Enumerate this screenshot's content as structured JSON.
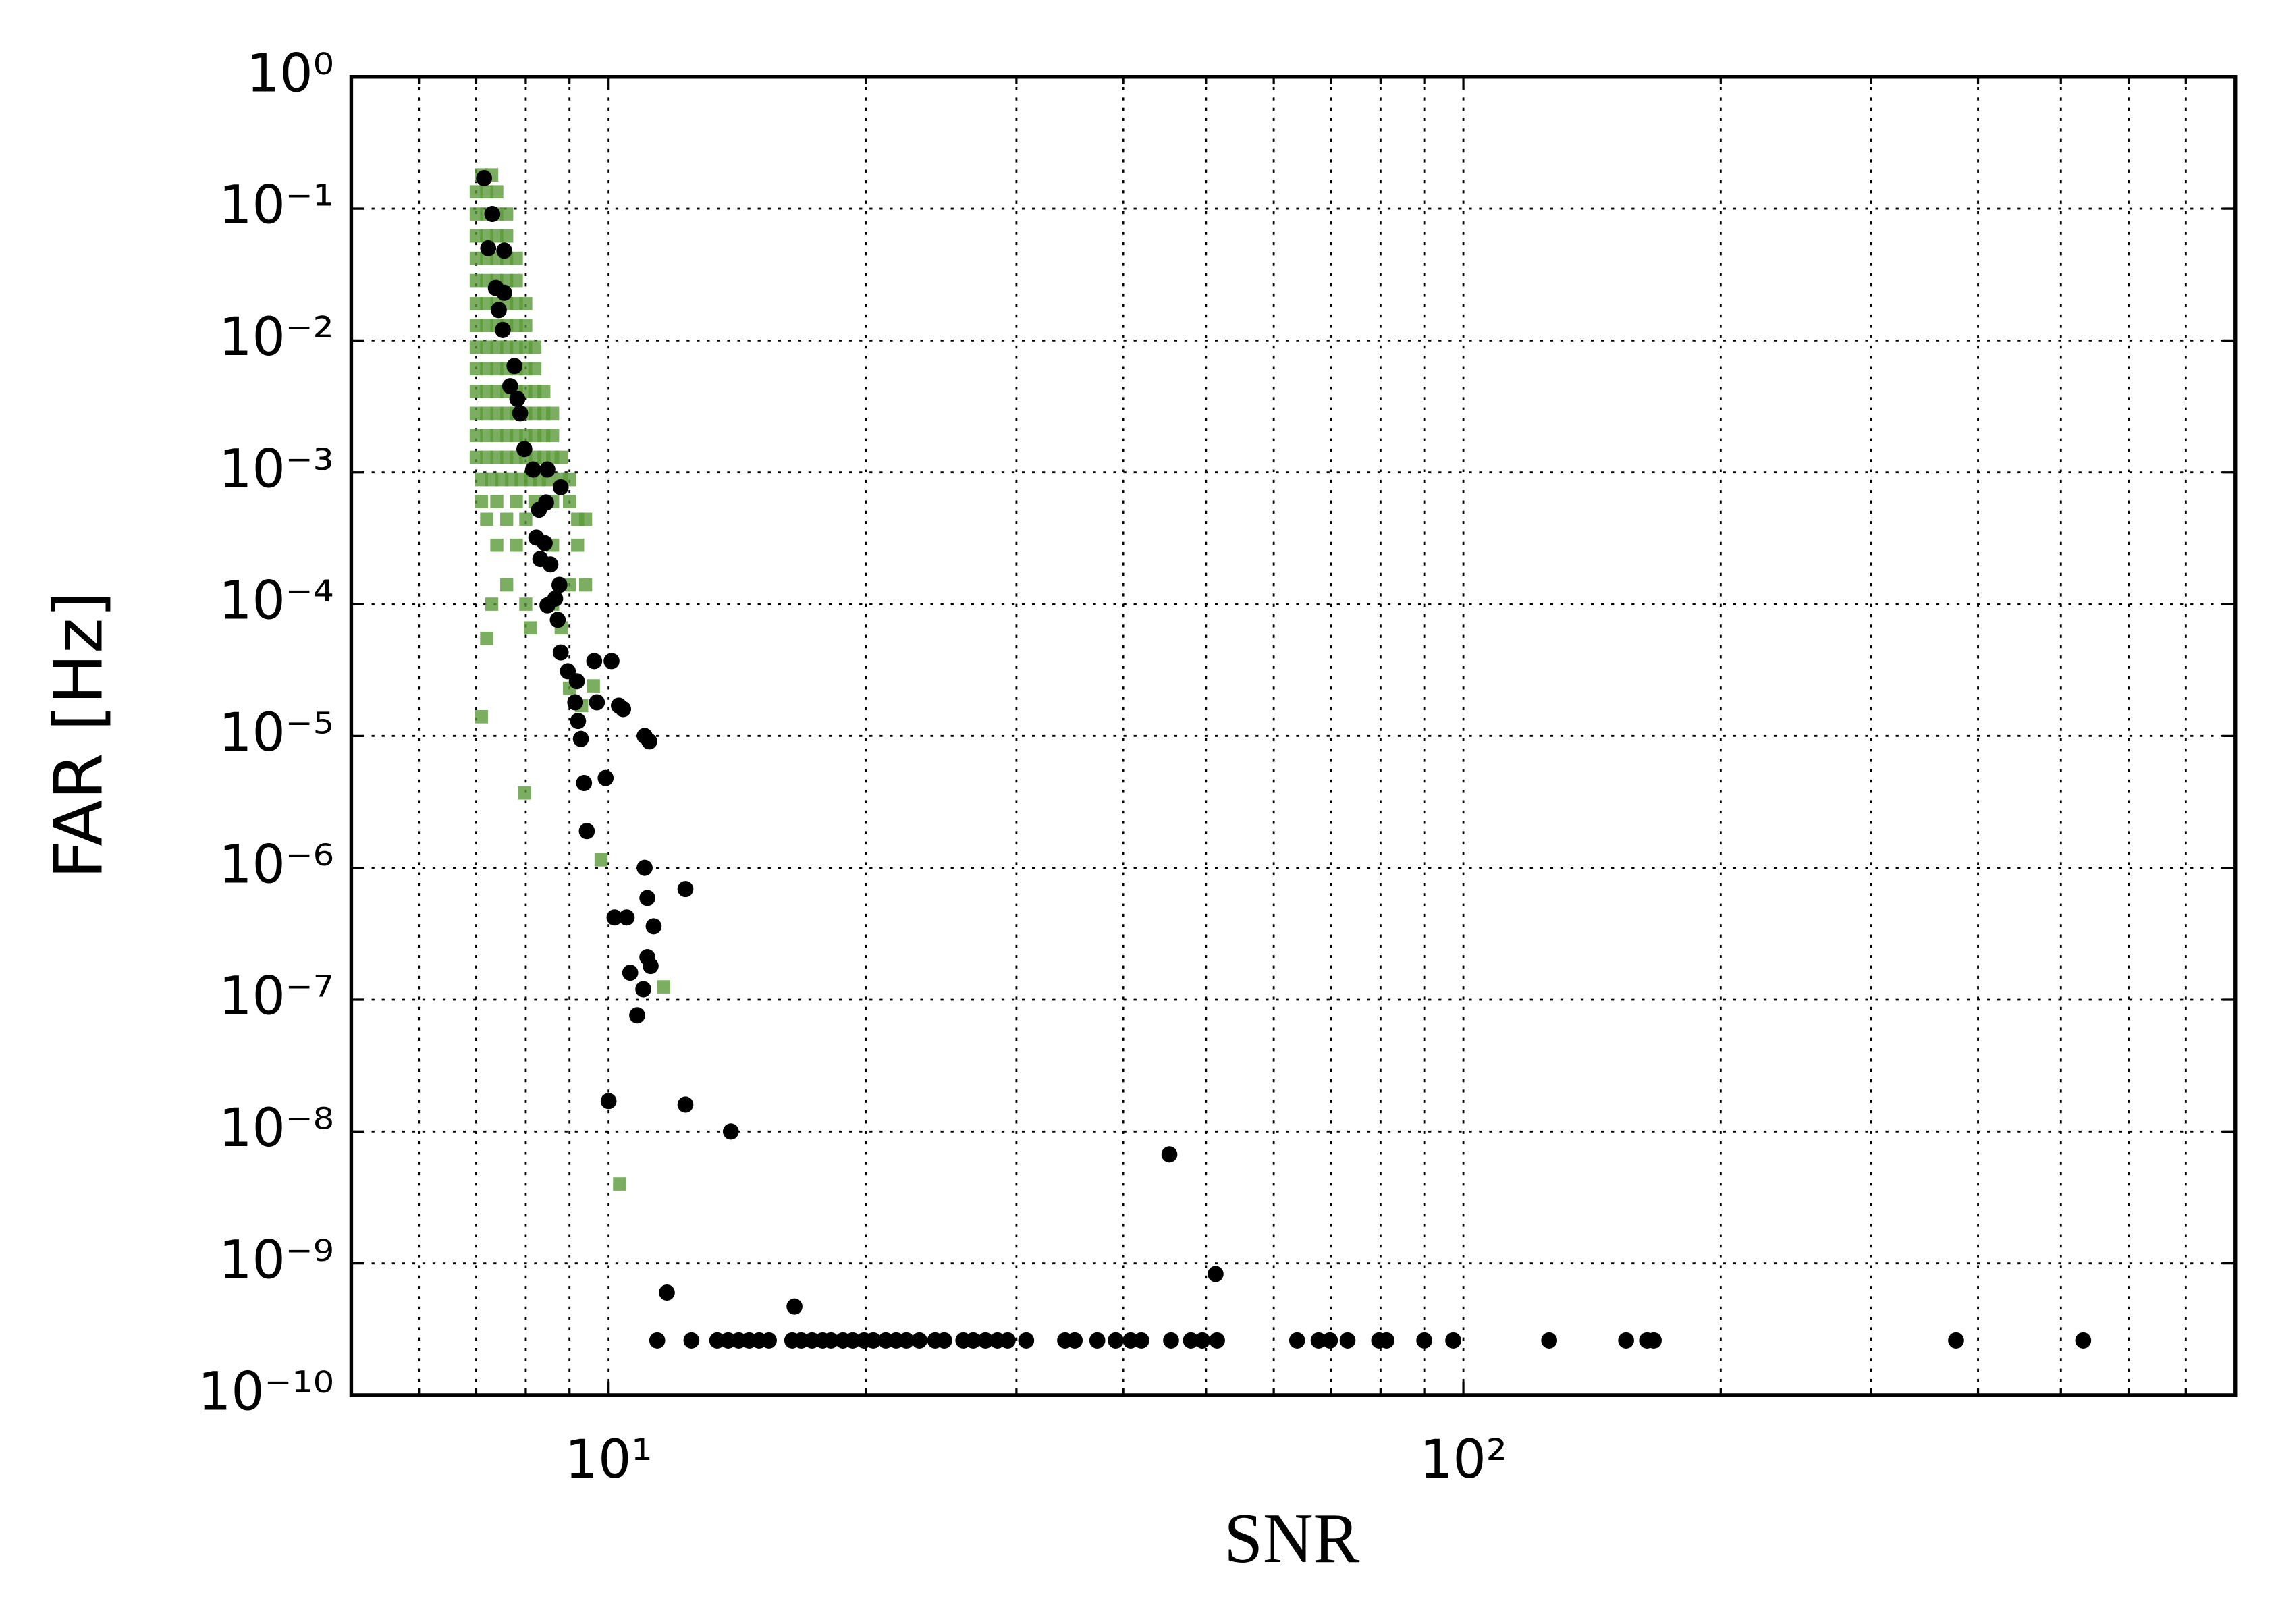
{
  "chart_data": {
    "type": "scatter",
    "xlabel": "SNR",
    "ylabel": "FAR [Hz]",
    "xscale": "log",
    "yscale": "log",
    "grid": true,
    "xlim": [
      5,
      800
    ],
    "ylim": [
      1e-10,
      1
    ],
    "xticks": [
      {
        "value": 10,
        "label": "10¹"
      },
      {
        "value": 100,
        "label": "10²"
      }
    ],
    "xminorticks": [
      6,
      7,
      8,
      9,
      20,
      30,
      40,
      50,
      60,
      70,
      80,
      90,
      200,
      300,
      400,
      500,
      600,
      700
    ],
    "yticks": [
      {
        "value": 1e-10,
        "label": "10⁻¹⁰"
      },
      {
        "value": 1e-09,
        "label": "10⁻⁹"
      },
      {
        "value": 1e-08,
        "label": "10⁻⁸"
      },
      {
        "value": 1e-07,
        "label": "10⁻⁷"
      },
      {
        "value": 1e-06,
        "label": "10⁻⁶"
      },
      {
        "value": 1e-05,
        "label": "10⁻⁵"
      },
      {
        "value": 0.0001,
        "label": "10⁻⁴"
      },
      {
        "value": 0.001,
        "label": "10⁻³"
      },
      {
        "value": 0.01,
        "label": "10⁻²"
      },
      {
        "value": 0.1,
        "label": "10⁻¹"
      },
      {
        "value": 1,
        "label": "10⁰"
      }
    ],
    "series": [
      {
        "color": "#5a9a38",
        "marker": "square",
        "x": [
          7.1,
          7.3,
          7.0,
          7.2,
          7.4,
          7.0,
          7.2,
          7.4,
          7.6,
          7.0,
          7.2,
          7.4,
          7.6,
          7.0,
          7.2,
          7.4,
          7.6,
          7.8,
          7.0,
          7.2,
          7.4,
          7.6,
          7.8,
          7.0,
          7.2,
          7.4,
          7.6,
          7.8,
          8.0,
          7.0,
          7.2,
          7.4,
          7.6,
          7.8,
          8.0,
          7.0,
          7.2,
          7.4,
          7.6,
          7.8,
          8.0,
          8.2,
          7.0,
          7.2,
          7.4,
          7.6,
          7.8,
          8.0,
          8.2,
          7.0,
          7.2,
          7.4,
          7.6,
          7.8,
          8.0,
          8.2,
          8.4,
          7.0,
          7.2,
          7.4,
          7.6,
          7.8,
          8.0,
          8.2,
          8.4,
          8.6,
          7.0,
          7.2,
          7.4,
          7.6,
          7.8,
          8.0,
          8.2,
          8.4,
          8.6,
          7.0,
          7.2,
          7.4,
          7.6,
          7.8,
          8.0,
          8.2,
          8.4,
          8.6,
          8.8,
          7.1,
          7.3,
          7.5,
          7.7,
          7.9,
          8.1,
          8.3,
          8.5,
          8.8,
          9.0,
          7.1,
          7.4,
          7.8,
          8.2,
          8.6,
          9.0,
          7.2,
          7.6,
          8.0,
          9.2,
          9.4,
          7.4,
          7.8,
          8.6,
          9.2,
          7.6,
          9.0,
          9.4,
          7.3,
          8.0,
          8.6,
          8.1,
          8.8,
          7.2,
          7.1,
          7.97,
          9.8,
          11.6,
          10.3,
          9.3,
          9.0,
          9.6
        ],
        "values": [
          0.18,
          0.18,
          0.134,
          0.134,
          0.134,
          0.091,
          0.091,
          0.091,
          0.091,
          0.062,
          0.062,
          0.062,
          0.062,
          0.042,
          0.042,
          0.042,
          0.042,
          0.042,
          0.0285,
          0.0285,
          0.0285,
          0.0285,
          0.0285,
          0.019,
          0.019,
          0.019,
          0.019,
          0.019,
          0.019,
          0.013,
          0.013,
          0.013,
          0.013,
          0.013,
          0.013,
          0.0089,
          0.0089,
          0.0089,
          0.0089,
          0.0089,
          0.0089,
          0.0089,
          0.0061,
          0.0061,
          0.0061,
          0.0061,
          0.0061,
          0.0061,
          0.0061,
          0.0041,
          0.0041,
          0.0041,
          0.0041,
          0.0041,
          0.0041,
          0.0041,
          0.0041,
          0.0028,
          0.0028,
          0.0028,
          0.0028,
          0.0028,
          0.0028,
          0.0028,
          0.0028,
          0.0028,
          0.0019,
          0.0019,
          0.0019,
          0.0019,
          0.0019,
          0.0019,
          0.0019,
          0.0019,
          0.0019,
          0.0013,
          0.0013,
          0.0013,
          0.0013,
          0.0013,
          0.0013,
          0.0013,
          0.0013,
          0.0013,
          0.0013,
          0.00088,
          0.00088,
          0.00088,
          0.00088,
          0.00088,
          0.00088,
          0.00088,
          0.00088,
          0.00088,
          0.00088,
          0.0006,
          0.0006,
          0.0006,
          0.0006,
          0.0006,
          0.0006,
          0.00044,
          0.00044,
          0.00044,
          0.00044,
          0.00044,
          0.00028,
          0.00028,
          0.00028,
          0.00028,
          0.00014,
          0.00014,
          0.00014,
          0.0001,
          0.0001,
          0.0001,
          6.6e-05,
          6.6e-05,
          5.5e-05,
          1.4e-05,
          3.7e-06,
          1.15e-06,
          1.25e-07,
          4e-09,
          1.7e-05,
          2.3e-05,
          2.4e-05
        ]
      },
      {
        "color": "#000000",
        "marker": "circle",
        "x": [
          7.15,
          7.31,
          7.23,
          7.55,
          7.38,
          7.55,
          7.44,
          7.52,
          7.76,
          7.67,
          7.82,
          7.88,
          7.97,
          8.16,
          8.48,
          8.45,
          8.29,
          8.79,
          8.23,
          8.42,
          8.32,
          8.55,
          8.76,
          8.66,
          8.48,
          8.72,
          8.79,
          9.62,
          8.96,
          9.18,
          9.14,
          9.69,
          10.08,
          10.28,
          10.4,
          9.21,
          9.28,
          11.02,
          11.16,
          9.36,
          9.92,
          9.43,
          11.02,
          12.3,
          11.1,
          10.16,
          10.5,
          11.29,
          11.1,
          11.2,
          10.6,
          10.98,
          10.8,
          10.0,
          12.3,
          13.9,
          45.3,
          51.3,
          11.7,
          16.5,
          11.4,
          12.5,
          13.4,
          13.8,
          14.2,
          14.6,
          15.0,
          15.4,
          16.4,
          16.8,
          17.3,
          17.8,
          18.2,
          18.8,
          19.3,
          19.9,
          20.4,
          21.1,
          21.7,
          22.3,
          23.1,
          24.1,
          24.7,
          26.0,
          26.7,
          27.6,
          28.5,
          29.3,
          30.8,
          34.2,
          35.1,
          37.3,
          39.2,
          40.8,
          42.0,
          45.5,
          48.0,
          49.5,
          51.5,
          63.9,
          67.7,
          69.8,
          73.2,
          79.7,
          81.3,
          90.0,
          97.3,
          126,
          155,
          164,
          167,
          377,
          531
        ],
        "values": [
          0.17,
          0.091,
          0.05,
          0.048,
          0.025,
          0.023,
          0.017,
          0.012,
          0.0064,
          0.0045,
          0.0036,
          0.0028,
          0.0015,
          0.00105,
          0.00105,
          0.00059,
          0.00052,
          0.00077,
          0.00032,
          0.00029,
          0.00022,
          0.0002,
          0.00014,
          0.00011,
          9.8e-05,
          7.6e-05,
          4.3e-05,
          3.7e-05,
          3.1e-05,
          2.6e-05,
          1.8e-05,
          1.8e-05,
          3.7e-05,
          1.7e-05,
          1.6e-05,
          1.3e-05,
          9.5e-06,
          1e-05,
          9.1e-06,
          4.4e-06,
          4.8e-06,
          1.9e-06,
          1e-06,
          6.9e-07,
          5.9e-07,
          4.2e-07,
          4.2e-07,
          3.6e-07,
          2.1e-07,
          1.8e-07,
          1.6e-07,
          1.2e-07,
          7.6e-08,
          1.7e-08,
          1.6e-08,
          1e-08,
          6.7e-09,
          8.3e-10,
          6e-10,
          4.7e-10,
          2.6e-10,
          2.6e-10,
          2.6e-10,
          2.6e-10,
          2.6e-10,
          2.6e-10,
          2.6e-10,
          2.6e-10,
          2.6e-10,
          2.6e-10,
          2.6e-10,
          2.6e-10,
          2.6e-10,
          2.6e-10,
          2.6e-10,
          2.6e-10,
          2.6e-10,
          2.6e-10,
          2.6e-10,
          2.6e-10,
          2.6e-10,
          2.6e-10,
          2.6e-10,
          2.6e-10,
          2.6e-10,
          2.6e-10,
          2.6e-10,
          2.6e-10,
          2.6e-10,
          2.6e-10,
          2.6e-10,
          2.6e-10,
          2.6e-10,
          2.6e-10,
          2.6e-10,
          2.6e-10,
          2.6e-10,
          2.6e-10,
          2.6e-10,
          2.6e-10,
          2.6e-10,
          2.6e-10,
          2.6e-10,
          2.6e-10,
          2.6e-10,
          2.6e-10,
          2.6e-10,
          2.6e-10,
          2.6e-10,
          2.6e-10,
          2.6e-10,
          2.6e-10,
          2.6e-10
        ]
      }
    ]
  }
}
